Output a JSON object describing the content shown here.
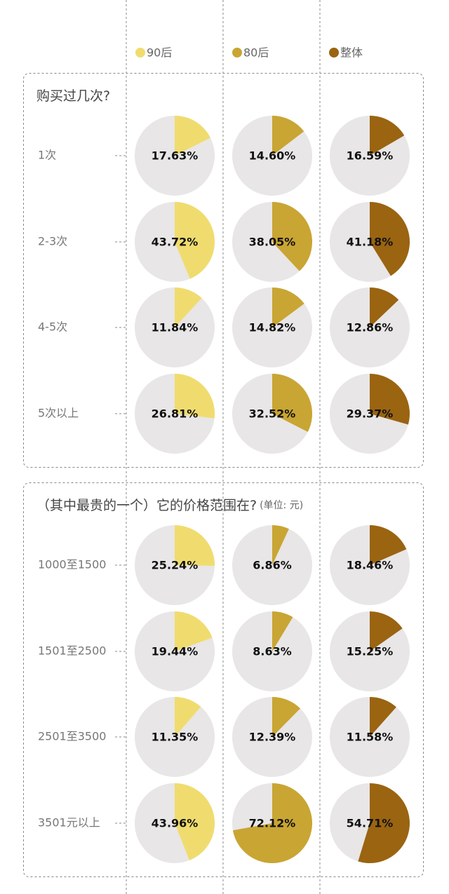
{
  "chart_data": [
    {
      "type": "pie",
      "title": "购买过几次?",
      "categories": [
        "1次",
        "2-3次",
        "4-5次",
        "5次以上"
      ],
      "series": [
        {
          "name": "90后",
          "color": "#f0dc6e",
          "values": [
            17.63,
            43.72,
            11.84,
            26.81
          ],
          "value_labels": [
            "17.63%",
            "43.72%",
            "11.84%",
            "26.81%"
          ]
        },
        {
          "name": "80后",
          "color": "#c9a533",
          "values": [
            14.6,
            38.05,
            14.82,
            32.52
          ],
          "value_labels": [
            "14.60%",
            "38.05%",
            "14.82%",
            "32.52%"
          ]
        },
        {
          "name": "整体",
          "color": "#9a6411",
          "values": [
            16.59,
            41.18,
            12.86,
            29.37
          ],
          "value_labels": [
            "16.59%",
            "41.18%",
            "12.86%",
            "29.37%"
          ]
        }
      ]
    },
    {
      "type": "pie",
      "title": "（其中最贵的一个）它的价格范围在?",
      "subtitle": "(单位: 元)",
      "categories": [
        "1000至1500",
        "1501至2500",
        "2501至3500",
        "3501元以上"
      ],
      "series": [
        {
          "color": "#f0dc6e",
          "values": [
            25.24,
            19.44,
            11.35,
            43.96
          ],
          "value_labels": [
            "25.24%",
            "19.44%",
            "11.35%",
            "43.96%"
          ]
        },
        {
          "color": "#c9a533",
          "values": [
            6.86,
            8.63,
            12.39,
            72.12
          ],
          "value_labels": [
            "6.86%",
            "8.63%",
            "12.39%",
            "72.12%"
          ]
        },
        {
          "color": "#9a6411",
          "values": [
            18.46,
            15.25,
            11.58,
            54.71
          ],
          "value_labels": [
            "18.46%",
            "15.25%",
            "11.58%",
            "54.71%"
          ]
        }
      ]
    }
  ]
}
